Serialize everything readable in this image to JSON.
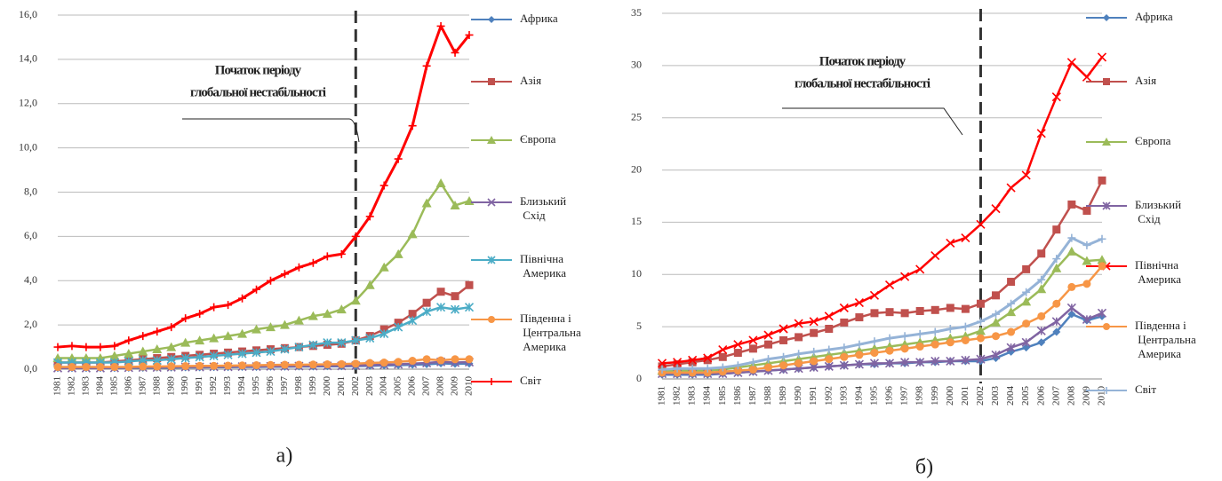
{
  "chart_data": [
    {
      "type": "line",
      "categories": [
        "1981",
        "1982",
        "1983",
        "1984",
        "1985",
        "1986",
        "1987",
        "1988",
        "1989",
        "1990",
        "1991",
        "1992",
        "1993",
        "1994",
        "1995",
        "1996",
        "1997",
        "1998",
        "1999",
        "2000",
        "2001",
        "2002",
        "2003",
        "2004",
        "2005",
        "2006",
        "2007",
        "2008",
        "2009",
        "2010"
      ],
      "ylim": [
        0,
        16
      ],
      "yticks": [
        {
          "value": 0,
          "label": "0,0"
        },
        {
          "value": 2,
          "label": "2,0"
        },
        {
          "value": 4,
          "label": "4,0"
        },
        {
          "value": 6,
          "label": "6,0"
        },
        {
          "value": 8,
          "label": "8,0"
        },
        {
          "value": 10,
          "label": "10,0"
        },
        {
          "value": 12,
          "label": "12,0"
        },
        {
          "value": 14,
          "label": "14,0"
        },
        {
          "value": 16,
          "label": "16,0"
        }
      ],
      "grid": true,
      "reference_line": {
        "x": "2002"
      },
      "annotation": [
        "Початок періоду",
        "глобальної нестабільності"
      ],
      "caption": "а)",
      "series": [
        {
          "name": "Африка",
          "color": "#4f81bd",
          "marker": "diamond",
          "values": [
            0.05,
            0.05,
            0.05,
            0.05,
            0.05,
            0.06,
            0.06,
            0.07,
            0.07,
            0.08,
            0.08,
            0.09,
            0.09,
            0.1,
            0.1,
            0.11,
            0.11,
            0.12,
            0.12,
            0.13,
            0.13,
            0.14,
            0.15,
            0.17,
            0.18,
            0.2,
            0.22,
            0.26,
            0.24,
            0.25
          ]
        },
        {
          "name": "Азія",
          "color": "#c0504d",
          "marker": "square",
          "values": [
            0.3,
            0.3,
            0.3,
            0.3,
            0.35,
            0.4,
            0.45,
            0.5,
            0.55,
            0.6,
            0.65,
            0.7,
            0.75,
            0.8,
            0.85,
            0.9,
            0.95,
            1.0,
            1.05,
            1.1,
            1.15,
            1.3,
            1.5,
            1.8,
            2.1,
            2.5,
            3.0,
            3.5,
            3.3,
            3.8
          ]
        },
        {
          "name": "Європа",
          "color": "#9bbb59",
          "marker": "triangle",
          "values": [
            0.5,
            0.5,
            0.5,
            0.5,
            0.6,
            0.7,
            0.8,
            0.9,
            1.0,
            1.2,
            1.3,
            1.4,
            1.5,
            1.6,
            1.8,
            1.9,
            2.0,
            2.2,
            2.4,
            2.5,
            2.7,
            3.1,
            3.8,
            4.6,
            5.2,
            6.1,
            7.5,
            8.4,
            7.4,
            7.6
          ]
        },
        {
          "name": "Близький Схід",
          "color": "#8064a2",
          "marker": "x",
          "values": [
            0.05,
            0.05,
            0.05,
            0.05,
            0.06,
            0.07,
            0.08,
            0.08,
            0.09,
            0.1,
            0.1,
            0.11,
            0.11,
            0.12,
            0.12,
            0.13,
            0.13,
            0.14,
            0.14,
            0.15,
            0.15,
            0.16,
            0.18,
            0.2,
            0.22,
            0.25,
            0.28,
            0.33,
            0.3,
            0.32
          ]
        },
        {
          "name": "Північна Америка",
          "color": "#4bacc6",
          "marker": "star",
          "values": [
            0.3,
            0.3,
            0.3,
            0.3,
            0.3,
            0.35,
            0.4,
            0.4,
            0.45,
            0.5,
            0.55,
            0.6,
            0.65,
            0.7,
            0.75,
            0.8,
            0.9,
            1.0,
            1.1,
            1.2,
            1.2,
            1.3,
            1.4,
            1.6,
            1.9,
            2.2,
            2.6,
            2.8,
            2.7,
            2.8
          ]
        },
        {
          "name": "Південна і Центральна Америка",
          "color": "#f79646",
          "marker": "circle",
          "values": [
            0.1,
            0.1,
            0.1,
            0.1,
            0.1,
            0.1,
            0.12,
            0.12,
            0.13,
            0.14,
            0.15,
            0.15,
            0.16,
            0.17,
            0.18,
            0.19,
            0.2,
            0.2,
            0.21,
            0.22,
            0.23,
            0.25,
            0.28,
            0.3,
            0.33,
            0.38,
            0.45,
            0.4,
            0.45,
            0.45
          ]
        },
        {
          "name": "Світ",
          "color": "#ff0000",
          "marker": "plus",
          "values": [
            1.0,
            1.05,
            1.0,
            1.0,
            1.05,
            1.3,
            1.5,
            1.7,
            1.9,
            2.3,
            2.5,
            2.8,
            2.9,
            3.2,
            3.6,
            4.0,
            4.3,
            4.6,
            4.8,
            5.1,
            5.2,
            6.0,
            6.9,
            8.3,
            9.5,
            11.0,
            13.7,
            15.5,
            14.3,
            15.1
          ]
        }
      ]
    },
    {
      "type": "line",
      "categories": [
        "1981",
        "1982",
        "1983",
        "1984",
        "1985",
        "1986",
        "1987",
        "1988",
        "1989",
        "1990",
        "1991",
        "1992",
        "1993",
        "1994",
        "1995",
        "1996",
        "1997",
        "1998",
        "1999",
        "2000",
        "2001",
        "2002",
        "2003",
        "2004",
        "2005",
        "2006",
        "2007",
        "2008",
        "2009",
        "2010"
      ],
      "ylim": [
        0,
        35
      ],
      "yticks": [
        0,
        5,
        10,
        15,
        20,
        25,
        30,
        35
      ],
      "grid": true,
      "reference_line": {
        "x": "2002"
      },
      "annotation": [
        "Початок періоду",
        "глобальної нестабільності"
      ],
      "caption": "б)",
      "series": [
        {
          "name": "Африка",
          "color": "#4f81bd",
          "marker": "diamond",
          "values": [
            0.4,
            0.4,
            0.4,
            0.4,
            0.5,
            0.6,
            0.7,
            0.8,
            0.9,
            1.0,
            1.1,
            1.2,
            1.3,
            1.4,
            1.4,
            1.5,
            1.5,
            1.6,
            1.6,
            1.7,
            1.7,
            1.7,
            2.0,
            2.6,
            3.0,
            3.5,
            4.5,
            6.2,
            5.6,
            6.0
          ]
        },
        {
          "name": "Азія",
          "color": "#c0504d",
          "marker": "square",
          "values": [
            1.2,
            1.4,
            1.6,
            1.8,
            2.1,
            2.5,
            2.9,
            3.3,
            3.7,
            4.0,
            4.4,
            4.8,
            5.4,
            5.9,
            6.3,
            6.4,
            6.3,
            6.5,
            6.6,
            6.8,
            6.7,
            7.2,
            8.0,
            9.3,
            10.5,
            12.0,
            14.3,
            16.7,
            16.1,
            19.0
          ]
        },
        {
          "name": "Європа",
          "color": "#9bbb59",
          "marker": "triangle",
          "values": [
            0.8,
            0.8,
            0.8,
            0.8,
            0.9,
            1.1,
            1.3,
            1.5,
            1.7,
            1.9,
            2.1,
            2.3,
            2.5,
            2.7,
            2.9,
            3.1,
            3.3,
            3.5,
            3.7,
            3.9,
            4.1,
            4.6,
            5.4,
            6.4,
            7.4,
            8.6,
            10.6,
            12.2,
            11.3,
            11.4
          ]
        },
        {
          "name": "Близький Схід",
          "color": "#8064a2",
          "marker": "star",
          "values": [
            0.5,
            0.5,
            0.5,
            0.5,
            0.5,
            0.6,
            0.7,
            0.8,
            0.9,
            1.0,
            1.1,
            1.2,
            1.3,
            1.4,
            1.5,
            1.5,
            1.6,
            1.6,
            1.7,
            1.7,
            1.8,
            1.9,
            2.3,
            3.0,
            3.5,
            4.6,
            5.5,
            6.8,
            5.7,
            6.3
          ]
        },
        {
          "name": "Північна Америка",
          "color": "#ff0000",
          "marker": "x",
          "values": [
            1.5,
            1.6,
            1.8,
            2.0,
            2.8,
            3.3,
            3.7,
            4.2,
            4.8,
            5.3,
            5.5,
            6.0,
            6.8,
            7.3,
            8.0,
            9.0,
            9.8,
            10.5,
            11.8,
            13.0,
            13.5,
            14.8,
            16.3,
            18.3,
            19.5,
            23.5,
            27.0,
            30.3,
            28.9,
            30.8
          ]
        },
        {
          "name": "Південна і Центральна Америка",
          "color": "#f79646",
          "marker": "circle",
          "values": [
            0.6,
            0.6,
            0.6,
            0.6,
            0.7,
            0.8,
            0.9,
            1.1,
            1.3,
            1.5,
            1.7,
            1.9,
            2.1,
            2.3,
            2.5,
            2.7,
            2.9,
            3.1,
            3.3,
            3.5,
            3.7,
            3.9,
            4.1,
            4.5,
            5.3,
            6.0,
            7.2,
            8.8,
            9.1,
            10.8
          ]
        },
        {
          "name": "Світ",
          "color": "#95b3d7",
          "marker": "plus",
          "values": [
            0.9,
            1.0,
            1.0,
            1.0,
            1.1,
            1.3,
            1.6,
            1.9,
            2.1,
            2.4,
            2.6,
            2.8,
            3.0,
            3.3,
            3.6,
            3.9,
            4.1,
            4.3,
            4.5,
            4.8,
            5.0,
            5.5,
            6.2,
            7.2,
            8.3,
            9.5,
            11.5,
            13.5,
            12.8,
            13.4
          ]
        }
      ]
    }
  ]
}
